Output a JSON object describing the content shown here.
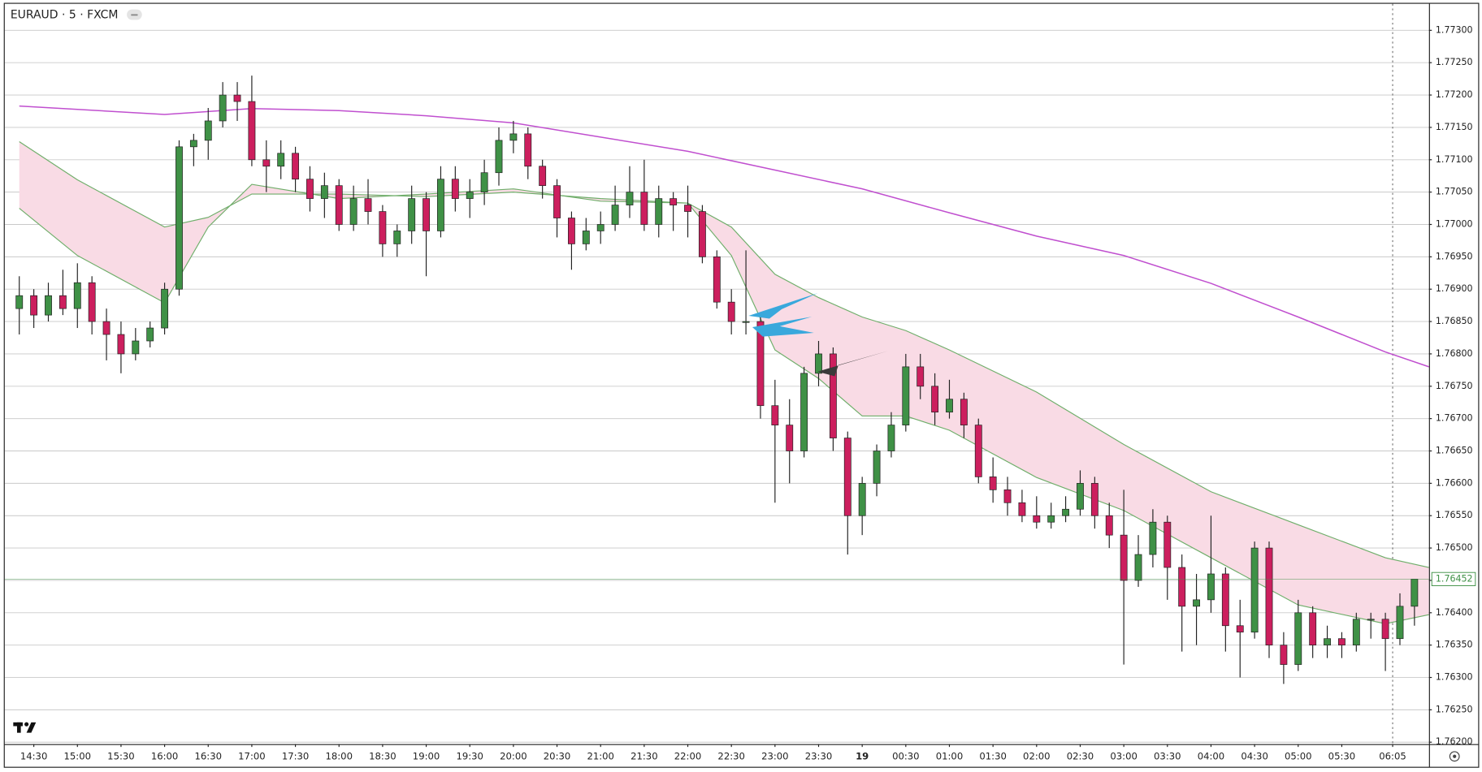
{
  "chart_data": {
    "type": "candlestick",
    "title": "EURAUD · 5 · FXCM",
    "up_color": "#3f9146",
    "down_color": "#cc1f5e",
    "grid": true,
    "xlim": [
      "14:10",
      "06:30"
    ],
    "ylim": [
      1.76197,
      1.77341
    ],
    "yticks": [
      {
        "value": 1.762,
        "label": "1.76200"
      },
      {
        "value": 1.7625,
        "label": "1.76250"
      },
      {
        "value": 1.763,
        "label": "1.76300"
      },
      {
        "value": 1.7635,
        "label": "1.76350"
      },
      {
        "value": 1.764,
        "label": "1.76400"
      },
      {
        "value": 1.7645,
        "label": "1.76450"
      },
      {
        "value": 1.765,
        "label": "1.76500"
      },
      {
        "value": 1.7655,
        "label": "1.76550"
      },
      {
        "value": 1.766,
        "label": "1.76600"
      },
      {
        "value": 1.7665,
        "label": "1.76650"
      },
      {
        "value": 1.767,
        "label": "1.76700"
      },
      {
        "value": 1.7675,
        "label": "1.76750"
      },
      {
        "value": 1.768,
        "label": "1.76800"
      },
      {
        "value": 1.7685,
        "label": "1.76850"
      },
      {
        "value": 1.769,
        "label": "1.76900"
      },
      {
        "value": 1.7695,
        "label": "1.76950"
      },
      {
        "value": 1.77,
        "label": "1.77000"
      },
      {
        "value": 1.7705,
        "label": "1.77050"
      },
      {
        "value": 1.771,
        "label": "1.77100"
      },
      {
        "value": 1.7715,
        "label": "1.77150"
      },
      {
        "value": 1.772,
        "label": "1.77200"
      },
      {
        "value": 1.7725,
        "label": "1.77250"
      },
      {
        "value": 1.773,
        "label": "1.77300"
      }
    ],
    "xticks": [
      "14:30",
      "15:00",
      "15:30",
      "16:00",
      "16:30",
      "17:00",
      "17:30",
      "18:00",
      "18:30",
      "19:00",
      "19:30",
      "20:00",
      "20:30",
      "21:00",
      "21:30",
      "22:00",
      "22:30",
      "23:00",
      "23:30",
      {
        "value": "00:00",
        "label": "19"
      },
      "00:30",
      "01:00",
      "01:30",
      "02:00",
      "02:30",
      "03:00",
      "03:30",
      "04:00",
      "04:30",
      "05:00",
      "05:30",
      "06:05"
    ],
    "last_price": 1.76452,
    "last_price_color": "#3f9146",
    "categories": [
      "14:20",
      "14:30",
      "14:40",
      "14:50",
      "15:00",
      "15:10",
      "15:20",
      "15:30",
      "15:40",
      "15:50",
      "16:00",
      "16:10",
      "16:20",
      "16:30",
      "16:40",
      "16:50",
      "17:00",
      "17:10",
      "17:20",
      "17:30",
      "17:40",
      "17:50",
      "18:00",
      "18:10",
      "18:20",
      "18:30",
      "18:40",
      "18:50",
      "19:00",
      "19:10",
      "19:20",
      "19:30",
      "19:40",
      "19:50",
      "20:00",
      "20:10",
      "20:20",
      "20:30",
      "20:40",
      "20:50",
      "21:00",
      "21:10",
      "21:20",
      "21:30",
      "21:40",
      "21:50",
      "22:00",
      "22:10",
      "22:20",
      "22:30",
      "22:40",
      "22:50",
      "23:00",
      "23:10",
      "23:20",
      "23:30",
      "23:40",
      "23:50",
      "00:00",
      "00:10",
      "00:20",
      "00:30",
      "00:40",
      "00:50",
      "01:00",
      "01:10",
      "01:20",
      "01:30",
      "01:40",
      "01:50",
      "02:00",
      "02:10",
      "02:20",
      "02:30",
      "02:40",
      "02:50",
      "03:00",
      "03:10",
      "03:20",
      "03:30",
      "03:40",
      "03:50",
      "04:00",
      "04:10",
      "04:20",
      "04:30",
      "04:40",
      "04:50",
      "05:00",
      "05:10",
      "05:20",
      "05:30",
      "05:40",
      "05:50",
      "06:00",
      "06:10",
      "06:20"
    ],
    "open": [
      1.7687,
      1.7689,
      1.7686,
      1.7689,
      1.7687,
      1.7691,
      1.7685,
      1.7683,
      1.768,
      1.7682,
      1.7684,
      1.769,
      1.7712,
      1.7713,
      1.7716,
      1.772,
      1.7719,
      1.771,
      1.7709,
      1.7711,
      1.7707,
      1.7704,
      1.7706,
      1.77,
      1.7704,
      1.7702,
      1.7697,
      1.7699,
      1.7704,
      1.7699,
      1.7707,
      1.7704,
      1.7705,
      1.7708,
      1.7713,
      1.7714,
      1.7709,
      1.7706,
      1.7701,
      1.7697,
      1.7699,
      1.77,
      1.7703,
      1.7705,
      1.77,
      1.7704,
      1.7703,
      1.7702,
      1.7695,
      1.7688,
      1.7685,
      1.7685,
      1.7672,
      1.7669,
      1.7665,
      1.7677,
      1.768,
      1.7667,
      1.7655,
      1.766,
      1.7665,
      1.7669,
      1.7678,
      1.7675,
      1.7671,
      1.7673,
      1.7669,
      1.7661,
      1.7659,
      1.7657,
      1.7655,
      1.7654,
      1.7655,
      1.7656,
      1.766,
      1.7655,
      1.7652,
      1.7645,
      1.7649,
      1.7654,
      1.7647,
      1.7641,
      1.7642,
      1.7646,
      1.7638,
      1.7637,
      1.765,
      1.7635,
      1.7632,
      1.764,
      1.7635,
      1.7636,
      1.7635,
      1.7639,
      1.7639,
      1.7636,
      1.7641
    ],
    "high": [
      1.7692,
      1.769,
      1.7691,
      1.7693,
      1.7694,
      1.7692,
      1.7687,
      1.7685,
      1.7684,
      1.7685,
      1.7691,
      1.7713,
      1.7714,
      1.7718,
      1.7722,
      1.7722,
      1.7723,
      1.7713,
      1.7713,
      1.7712,
      1.7709,
      1.7708,
      1.7707,
      1.7706,
      1.7707,
      1.7703,
      1.77,
      1.7706,
      1.7705,
      1.7709,
      1.7709,
      1.7707,
      1.771,
      1.7715,
      1.7716,
      1.7715,
      1.771,
      1.7707,
      1.7702,
      1.7701,
      1.7702,
      1.7706,
      1.7709,
      1.771,
      1.7706,
      1.7705,
      1.7706,
      1.7703,
      1.7696,
      1.769,
      1.7696,
      1.7686,
      1.7676,
      1.7673,
      1.7678,
      1.7682,
      1.7681,
      1.7668,
      1.7661,
      1.7666,
      1.7671,
      1.768,
      1.768,
      1.7677,
      1.7676,
      1.7674,
      1.767,
      1.7664,
      1.7661,
      1.7659,
      1.7658,
      1.7657,
      1.7658,
      1.7662,
      1.7661,
      1.7657,
      1.7659,
      1.7652,
      1.7656,
      1.7655,
      1.7649,
      1.7646,
      1.7655,
      1.7647,
      1.7642,
      1.7651,
      1.7651,
      1.7637,
      1.7642,
      1.7641,
      1.7638,
      1.7637,
      1.764,
      1.764,
      1.764,
      1.7643,
      1.7645
    ],
    "low": [
      1.7683,
      1.7684,
      1.7685,
      1.7686,
      1.7684,
      1.7683,
      1.7679,
      1.7677,
      1.7679,
      1.7681,
      1.7683,
      1.7689,
      1.7709,
      1.771,
      1.7715,
      1.7716,
      1.7709,
      1.7705,
      1.7707,
      1.7705,
      1.7702,
      1.7701,
      1.7699,
      1.7699,
      1.77,
      1.7695,
      1.7695,
      1.7697,
      1.7692,
      1.7698,
      1.7702,
      1.7701,
      1.7703,
      1.7706,
      1.7711,
      1.7707,
      1.7704,
      1.7698,
      1.7693,
      1.7696,
      1.7697,
      1.7699,
      1.7701,
      1.7699,
      1.7698,
      1.7699,
      1.7698,
      1.7694,
      1.7687,
      1.7683,
      1.7683,
      1.767,
      1.7657,
      1.766,
      1.7664,
      1.7675,
      1.7665,
      1.7649,
      1.7652,
      1.7658,
      1.7664,
      1.7668,
      1.7673,
      1.7669,
      1.767,
      1.7667,
      1.766,
      1.7657,
      1.7655,
      1.7654,
      1.7653,
      1.7653,
      1.7654,
      1.7655,
      1.7653,
      1.765,
      1.7632,
      1.7644,
      1.7647,
      1.7642,
      1.7634,
      1.7635,
      1.764,
      1.7634,
      1.763,
      1.7636,
      1.7633,
      1.7629,
      1.7631,
      1.7633,
      1.7633,
      1.7633,
      1.7634,
      1.7636,
      1.7631,
      1.7635,
      1.7638
    ],
    "close": [
      1.7689,
      1.7686,
      1.7689,
      1.7687,
      1.7691,
      1.7685,
      1.7683,
      1.768,
      1.7682,
      1.7684,
      1.769,
      1.7712,
      1.7713,
      1.7716,
      1.772,
      1.7719,
      1.771,
      1.7709,
      1.7711,
      1.7707,
      1.7704,
      1.7706,
      1.77,
      1.7704,
      1.7702,
      1.7697,
      1.7699,
      1.7704,
      1.7699,
      1.7707,
      1.7704,
      1.7705,
      1.7708,
      1.7713,
      1.7714,
      1.7709,
      1.7706,
      1.7701,
      1.7697,
      1.7699,
      1.77,
      1.7703,
      1.7705,
      1.77,
      1.7704,
      1.7703,
      1.7702,
      1.7695,
      1.7688,
      1.7685,
      1.7685,
      1.7672,
      1.7669,
      1.7665,
      1.7677,
      1.768,
      1.7667,
      1.7655,
      1.766,
      1.7665,
      1.7669,
      1.7678,
      1.7675,
      1.7671,
      1.7673,
      1.7669,
      1.7661,
      1.7659,
      1.7657,
      1.7655,
      1.7654,
      1.7655,
      1.7656,
      1.766,
      1.7655,
      1.7652,
      1.7645,
      1.7649,
      1.7654,
      1.7647,
      1.7641,
      1.7642,
      1.7646,
      1.7638,
      1.7637,
      1.765,
      1.7635,
      1.7632,
      1.764,
      1.7635,
      1.7636,
      1.7635,
      1.7639,
      1.7639,
      1.7636,
      1.7641,
      1.76452
    ],
    "lines": [
      {
        "color": "#c04fcf",
        "x": [
          "14:20",
          "16:00",
          "17:00",
          "18:00",
          "19:00",
          "20:00",
          "21:00",
          "22:00",
          "23:00",
          "00:00",
          "01:00",
          "02:00",
          "03:00",
          "04:00",
          "05:00",
          "06:00",
          "06:30"
        ],
        "values": [
          1.77183,
          1.7717,
          1.77179,
          1.77176,
          1.77168,
          1.77157,
          1.77135,
          1.77113,
          1.77084,
          1.77055,
          1.77018,
          1.76982,
          1.76952,
          1.76909,
          1.76857,
          1.76803,
          1.7678
        ]
      },
      {
        "color": "#6fae6a",
        "x": [
          "14:20",
          "15:00",
          "16:00",
          "16:30",
          "17:00",
          "18:00",
          "19:00",
          "20:00",
          "21:00",
          "22:00",
          "22:30",
          "23:00",
          "23:30",
          "00:00",
          "00:30",
          "01:00",
          "02:00",
          "03:00",
          "04:00",
          "05:00",
          "06:00",
          "06:30"
        ],
        "values": [
          1.77128,
          1.77069,
          1.76996,
          1.77011,
          1.77047,
          1.77047,
          1.77043,
          1.7705,
          1.7704,
          1.77033,
          1.76996,
          1.76923,
          1.76887,
          1.76857,
          1.76836,
          1.76806,
          1.76741,
          1.7666,
          1.76587,
          1.76536,
          1.76485,
          1.7647
        ]
      },
      {
        "color": "#6fae6a",
        "x": [
          "14:20",
          "15:00",
          "16:00",
          "16:30",
          "17:00",
          "18:00",
          "19:00",
          "20:00",
          "21:00",
          "22:00",
          "22:30",
          "23:00",
          "23:30",
          "00:00",
          "00:30",
          "01:00",
          "02:00",
          "03:00",
          "04:00",
          "05:00",
          "06:00",
          "06:30"
        ],
        "values": [
          1.77025,
          1.76952,
          1.76879,
          1.76996,
          1.77062,
          1.7704,
          1.77047,
          1.77055,
          1.77036,
          1.77033,
          1.76952,
          1.76806,
          1.76762,
          1.76704,
          1.76704,
          1.76682,
          1.76609,
          1.76558,
          1.76485,
          1.76412,
          1.76383,
          1.76397
        ]
      }
    ],
    "band_fill": "#f9dbe5"
  }
}
